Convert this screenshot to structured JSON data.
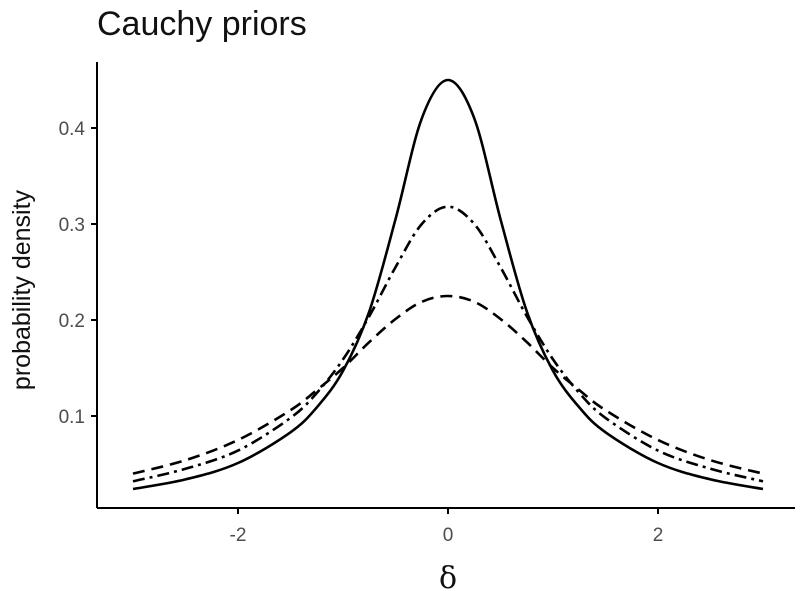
{
  "chart_data": {
    "type": "line",
    "title": "Cauchy priors",
    "xlabel": "δ",
    "ylabel": "probability density",
    "xlim": [
      -3.3,
      3.3
    ],
    "ylim": [
      0.01,
      0.47
    ],
    "x_ticks": [
      -2,
      0,
      2
    ],
    "x_tick_labels": [
      "-2",
      "0",
      "2"
    ],
    "y_ticks": [
      0.1,
      0.2,
      0.3,
      0.4
    ],
    "y_tick_labels": [
      "0.1",
      "0.2",
      "0.3",
      "0.4"
    ],
    "grid": false,
    "legend": "none",
    "x": [
      -3.0,
      -2.5,
      -2.0,
      -1.5,
      -1.25,
      -1.0,
      -0.75,
      -0.5,
      -0.25,
      0.0,
      0.25,
      0.5,
      0.75,
      1.0,
      1.25,
      1.5,
      2.0,
      2.5,
      3.0
    ],
    "series": [
      {
        "line_style": "solid",
        "color": "#000000",
        "values": [
          0.024,
          0.034,
          0.051,
          0.083,
          0.109,
          0.147,
          0.209,
          0.305,
          0.41,
          0.45,
          0.41,
          0.305,
          0.209,
          0.147,
          0.109,
          0.083,
          0.051,
          0.034,
          0.024
        ]
      },
      {
        "line_style": "dashdot",
        "color": "#000000",
        "values": [
          0.032,
          0.045,
          0.064,
          0.098,
          0.124,
          0.159,
          0.204,
          0.255,
          0.3,
          0.318,
          0.3,
          0.255,
          0.204,
          0.159,
          0.124,
          0.098,
          0.064,
          0.045,
          0.032
        ]
      },
      {
        "line_style": "dashed",
        "color": "#000000",
        "values": [
          0.04,
          0.054,
          0.075,
          0.106,
          0.127,
          0.15,
          0.177,
          0.201,
          0.219,
          0.225,
          0.219,
          0.201,
          0.177,
          0.15,
          0.127,
          0.106,
          0.075,
          0.054,
          0.04
        ]
      }
    ]
  }
}
